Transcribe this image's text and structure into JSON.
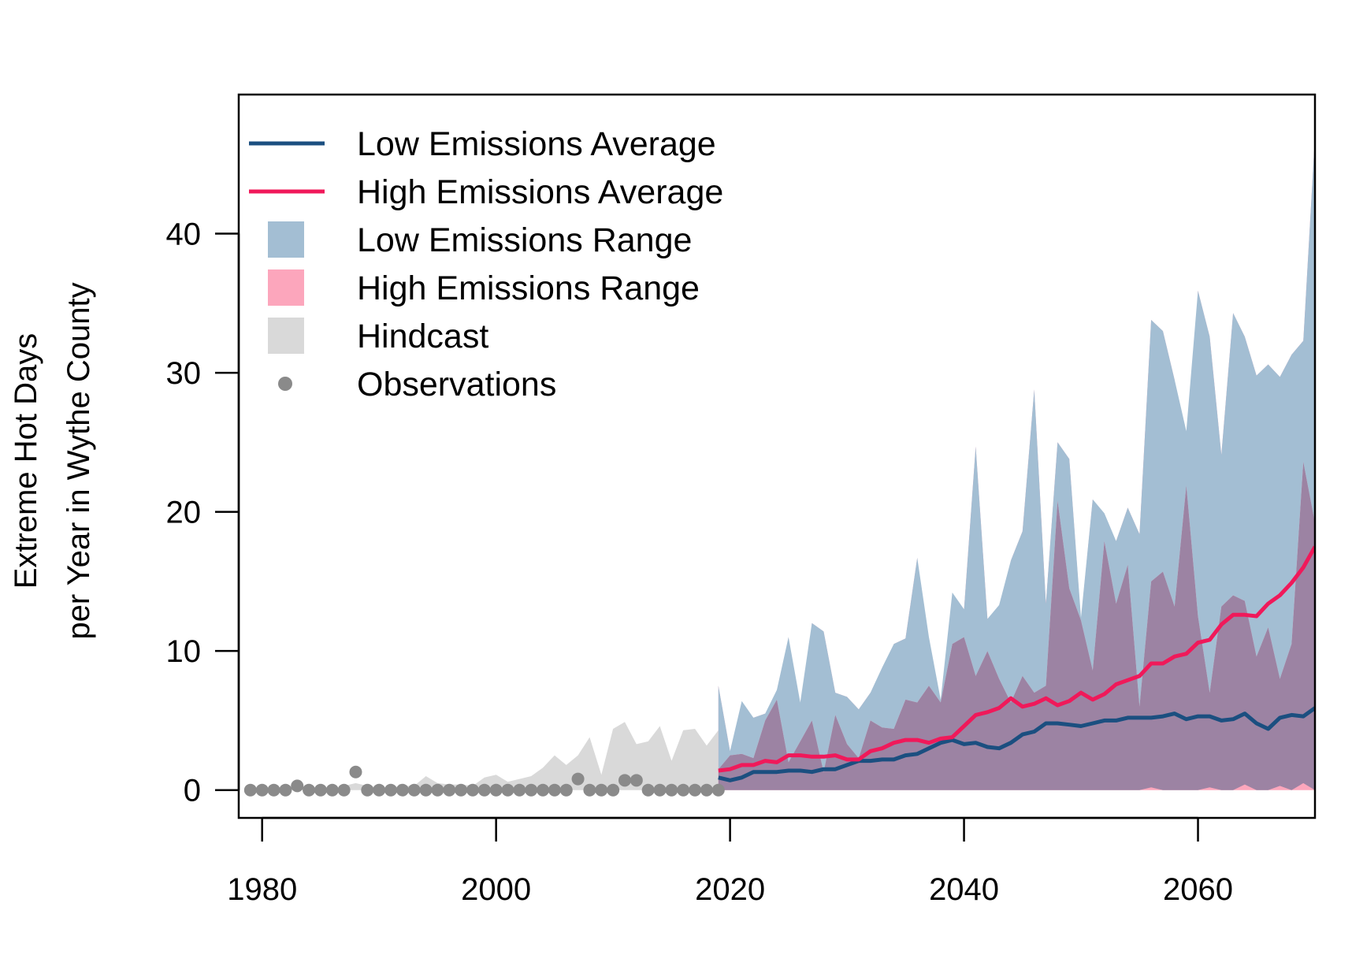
{
  "chart_data": {
    "type": "area",
    "title": "",
    "xlabel": "",
    "ylabel_lines": [
      "Extreme Hot Days",
      "per Year in Wythe County"
    ],
    "xlim": [
      1978,
      2070
    ],
    "ylim": [
      -2,
      50
    ],
    "x_ticks": [
      1980,
      2000,
      2020,
      2040,
      2060
    ],
    "y_ticks": [
      0,
      10,
      20,
      30,
      40
    ],
    "grid": false,
    "legend_position": "top-left",
    "colors": {
      "low_line": "#1b4f80",
      "high_line": "#f0195a",
      "low_range": "#a3bed3",
      "high_range": "#fca6bc",
      "overlap": "#9c83a3",
      "hindcast": "#d9d9d9",
      "observations": "#8a8a8a"
    },
    "legend": [
      {
        "label": "Low Emissions Average",
        "kind": "line",
        "color": "#1b4f80"
      },
      {
        "label": "High Emissions Average",
        "kind": "line",
        "color": "#f0195a"
      },
      {
        "label": "Low Emissions Range",
        "kind": "box",
        "color": "#a3bed3"
      },
      {
        "label": "High Emissions Range",
        "kind": "box",
        "color": "#fca6bc"
      },
      {
        "label": "Hindcast",
        "kind": "box",
        "color": "#d9d9d9"
      },
      {
        "label": "Observations",
        "kind": "point",
        "color": "#8a8a8a"
      }
    ],
    "observations": {
      "x": [
        1979,
        1980,
        1981,
        1982,
        1983,
        1984,
        1985,
        1986,
        1987,
        1988,
        1989,
        1990,
        1991,
        1992,
        1993,
        1994,
        1995,
        1996,
        1997,
        1998,
        1999,
        2000,
        2001,
        2002,
        2003,
        2004,
        2005,
        2006,
        2007,
        2008,
        2009,
        2010,
        2011,
        2012,
        2013,
        2014,
        2015,
        2016,
        2017,
        2018,
        2019
      ],
      "y": [
        0,
        0,
        0,
        0,
        0.3,
        0,
        0,
        0,
        0,
        1.3,
        0,
        0,
        0,
        0,
        0,
        0,
        0,
        0,
        0,
        0,
        0,
        0,
        0,
        0,
        0,
        0,
        0,
        0,
        0.8,
        0,
        0,
        0,
        0.7,
        0.7,
        0,
        0,
        0,
        0,
        0,
        0,
        0
      ]
    },
    "hindcast_upper": {
      "x": [
        1979,
        1980,
        1981,
        1982,
        1983,
        1984,
        1985,
        1986,
        1987,
        1988,
        1989,
        1990,
        1991,
        1992,
        1993,
        1994,
        1995,
        1996,
        1997,
        1998,
        1999,
        2000,
        2001,
        2002,
        2003,
        2004,
        2005,
        2006,
        2007,
        2008,
        2009,
        2010,
        2011,
        2012,
        2013,
        2014,
        2015,
        2016,
        2017,
        2018,
        2019
      ],
      "y": [
        0,
        0,
        0,
        0,
        0.2,
        0,
        0,
        0,
        0.3,
        0.5,
        0.3,
        0.2,
        0.2,
        0.3,
        0.3,
        1,
        0.5,
        0.4,
        0.4,
        0.3,
        0.9,
        1.1,
        0.6,
        0.8,
        1,
        1.6,
        2.5,
        1.8,
        2.5,
        3.8,
        1.1,
        4.4,
        4.9,
        3.3,
        3.5,
        4.6,
        2.1,
        4.3,
        4.4,
        3.2,
        4.3
      ]
    },
    "low_range": {
      "x": [
        2019,
        2020,
        2021,
        2022,
        2023,
        2024,
        2025,
        2026,
        2027,
        2028,
        2029,
        2030,
        2031,
        2032,
        2033,
        2034,
        2035,
        2036,
        2037,
        2038,
        2039,
        2040,
        2041,
        2042,
        2043,
        2044,
        2045,
        2046,
        2047,
        2048,
        2049,
        2050,
        2051,
        2052,
        2053,
        2054,
        2055,
        2056,
        2057,
        2058,
        2059,
        2060,
        2061,
        2062,
        2063,
        2064,
        2065,
        2066,
        2067,
        2068,
        2069,
        2070
      ],
      "upper": [
        1.5,
        2.5,
        6.4,
        2.3,
        5,
        7.2,
        2,
        6.3,
        5,
        1.3,
        5.4,
        3.3,
        2.3,
        5,
        8.8,
        4.4,
        6.5,
        6.3,
        11,
        6.3,
        14.2,
        11,
        8.2,
        10,
        13.3,
        6.3,
        8.2,
        7,
        7.5,
        20.8,
        14.5,
        12.4,
        8.6,
        19.9,
        13.4,
        16.2,
        6,
        15,
        15.7,
        13.2,
        25.8,
        12.5,
        7,
        13.2,
        14,
        13.6,
        9.6,
        11.7,
        8,
        10.5,
        23.6,
        19.2
      ],
      "lower": [
        0,
        0,
        0,
        0,
        0,
        0,
        0,
        0,
        0,
        0,
        0,
        0,
        0,
        0,
        0,
        0,
        0,
        0,
        0,
        0,
        0,
        0,
        0,
        0,
        0,
        0,
        0,
        0,
        0,
        0,
        0,
        0,
        0,
        0,
        0,
        0,
        0,
        0.2,
        0,
        0,
        0,
        0,
        0.2,
        0,
        0,
        0.4,
        0,
        0,
        0.3,
        0,
        0.5,
        0
      ]
    },
    "high_range": {
      "x": [
        2019,
        2020,
        2021,
        2022,
        2023,
        2024,
        2025,
        2026,
        2027,
        2028,
        2029,
        2030,
        2031,
        2032,
        2033,
        2034,
        2035,
        2036,
        2037,
        2038,
        2039,
        2040,
        2041,
        2042,
        2043,
        2044,
        2045,
        2046,
        2047,
        2048,
        2049,
        2050,
        2051,
        2052,
        2053,
        2054,
        2055,
        2056,
        2057,
        2058,
        2059,
        2060,
        2061,
        2062,
        2063,
        2064,
        2065,
        2066,
        2067,
        2068,
        2069,
        2070
      ],
      "upper": [
        7.5,
        2.8,
        2.6,
        5.2,
        5.5,
        6.5,
        11,
        3.5,
        12,
        11.4,
        7,
        6.7,
        5.8,
        7,
        4.5,
        10.5,
        10.9,
        16.7,
        7.5,
        6.5,
        10.5,
        13,
        24.7,
        12.3,
        8,
        16.5,
        18.6,
        28.8,
        13.4,
        25,
        23.8,
        12.2,
        20.9,
        17.9,
        17.9,
        20.3,
        18.4,
        33.8,
        33,
        29.5,
        21.9,
        35.9,
        32.6,
        24.1,
        34.3,
        32.6,
        29.8,
        30.6,
        29.7,
        31.3,
        32.3,
        47
      ],
      "lower": [
        0,
        0,
        0,
        0,
        0,
        0,
        0,
        0,
        0,
        0,
        0,
        0,
        0,
        0,
        0,
        0,
        0,
        0,
        0,
        0,
        0,
        0,
        0,
        0,
        0,
        0,
        0,
        0,
        0,
        0,
        0,
        0,
        0,
        0,
        0,
        0,
        0,
        0,
        0,
        0,
        0,
        0,
        0,
        0,
        0,
        0,
        0,
        0,
        0,
        0,
        0,
        0
      ]
    },
    "series": [
      {
        "name": "Low Emissions Average",
        "x": [
          2019,
          2020,
          2021,
          2022,
          2023,
          2024,
          2025,
          2026,
          2027,
          2028,
          2029,
          2030,
          2031,
          2032,
          2033,
          2034,
          2035,
          2036,
          2037,
          2038,
          2039,
          2040,
          2041,
          2042,
          2043,
          2044,
          2045,
          2046,
          2047,
          2048,
          2049,
          2050,
          2051,
          2052,
          2053,
          2054,
          2055,
          2056,
          2057,
          2058,
          2059,
          2060,
          2061,
          2062,
          2063,
          2064,
          2065,
          2066,
          2067,
          2068,
          2069,
          2070
        ],
        "values": [
          0.9,
          0.7,
          0.9,
          1.3,
          1.3,
          1.3,
          1.4,
          1.4,
          1.3,
          1.5,
          1.5,
          1.8,
          2.1,
          2.1,
          2.2,
          2.2,
          2.5,
          2.6,
          3,
          3.4,
          3.6,
          3.3,
          3.4,
          3.1,
          3,
          3.4,
          4,
          4.2,
          4.8,
          4.8,
          4.7,
          4.6,
          4.8,
          5,
          5,
          5.2,
          5.2,
          5.2,
          5.3,
          5.5,
          5.1,
          5.3,
          5.3,
          5,
          5.1,
          5.5,
          4.8,
          4.4,
          5.2,
          5.4,
          5.3,
          5.9
        ]
      },
      {
        "name": "High Emissions Average",
        "x": [
          2019,
          2020,
          2021,
          2022,
          2023,
          2024,
          2025,
          2026,
          2027,
          2028,
          2029,
          2030,
          2031,
          2032,
          2033,
          2034,
          2035,
          2036,
          2037,
          2038,
          2039,
          2040,
          2041,
          2042,
          2043,
          2044,
          2045,
          2046,
          2047,
          2048,
          2049,
          2050,
          2051,
          2052,
          2053,
          2054,
          2055,
          2056,
          2057,
          2058,
          2059,
          2060,
          2061,
          2062,
          2063,
          2064,
          2065,
          2066,
          2067,
          2068,
          2069,
          2070
        ],
        "values": [
          1.4,
          1.5,
          1.8,
          1.8,
          2.1,
          2,
          2.5,
          2.5,
          2.4,
          2.4,
          2.5,
          2.2,
          2.2,
          2.8,
          3,
          3.4,
          3.6,
          3.6,
          3.4,
          3.7,
          3.8,
          4.6,
          5.4,
          5.6,
          5.9,
          6.6,
          6,
          6.2,
          6.6,
          6.1,
          6.4,
          7,
          6.5,
          6.9,
          7.6,
          7.9,
          8.2,
          9.1,
          9.1,
          9.6,
          9.8,
          10.6,
          10.8,
          11.9,
          12.6,
          12.6,
          12.5,
          13.4,
          14,
          14.9,
          16,
          17.5
        ]
      }
    ]
  }
}
